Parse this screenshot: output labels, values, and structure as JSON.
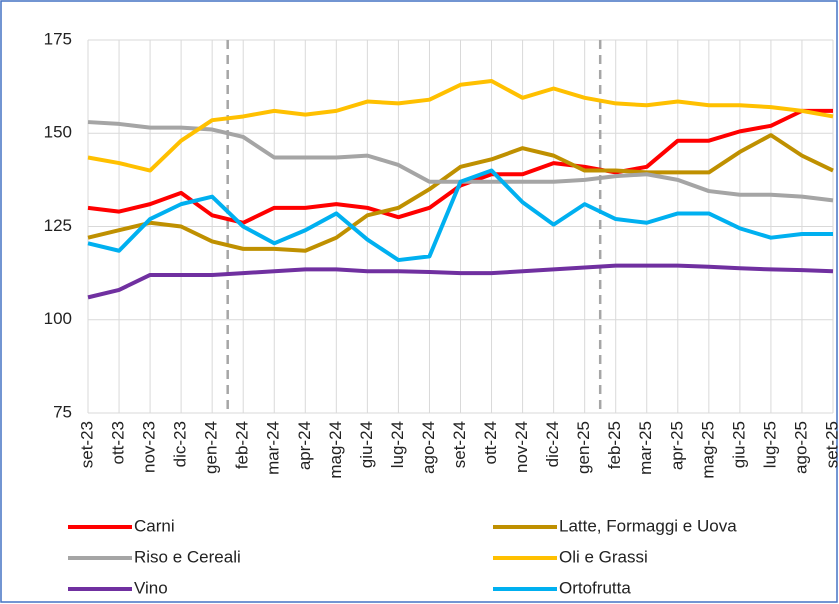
{
  "chart_data": {
    "type": "line",
    "categories": [
      "set-23",
      "ott-23",
      "nov-23",
      "dic-23",
      "gen-24",
      "feb-24",
      "mar-24",
      "apr-24",
      "mag-24",
      "giu-24",
      "lug-24",
      "ago-24",
      "set-24",
      "ott-24",
      "nov-24",
      "dic-24",
      "gen-25",
      "feb-25",
      "mar-25",
      "apr-25",
      "mag-25",
      "giu-25",
      "lug-25",
      "ago-25",
      "set-25"
    ],
    "series": [
      {
        "name": "Carni",
        "color": "#ff0000",
        "values": [
          130,
          129,
          131,
          134,
          128,
          126,
          130,
          130,
          131,
          130,
          127.5,
          130,
          136,
          139,
          139,
          142,
          141,
          139.5,
          141,
          148,
          148,
          150.5,
          152,
          156,
          156
        ]
      },
      {
        "name": "Latte, Formaggi e Uova",
        "color": "#bf9000",
        "values": [
          122,
          124,
          126,
          125,
          121,
          119,
          119,
          118.5,
          122,
          128,
          130,
          135,
          141,
          143,
          146,
          144,
          140,
          140,
          139.5,
          139.5,
          139.5,
          145,
          149.5,
          144,
          140
        ]
      },
      {
        "name": "Riso e Cereali",
        "color": "#a5a5a5",
        "values": [
          153,
          152.5,
          151.5,
          151.5,
          151,
          149,
          143.5,
          143.5,
          143.5,
          144,
          141.5,
          137,
          137,
          137,
          137,
          137,
          137.5,
          138.5,
          139,
          137.5,
          134.5,
          133.5,
          133.5,
          133,
          132
        ]
      },
      {
        "name": "Oli e Grassi",
        "color": "#ffc000",
        "values": [
          143.5,
          142,
          140,
          148,
          153.5,
          154.5,
          156,
          155,
          156,
          158.5,
          158,
          159,
          163,
          164,
          159.5,
          162,
          159.5,
          158,
          157.5,
          158.5,
          157.5,
          157.5,
          157,
          156,
          154.5
        ]
      },
      {
        "name": "Vino",
        "color": "#7030a0",
        "values": [
          106,
          108,
          112,
          112,
          112,
          112.5,
          113,
          113.5,
          113.5,
          113,
          113,
          112.8,
          112.5,
          112.5,
          113,
          113.5,
          114,
          114.5,
          114.5,
          114.5,
          114.2,
          113.8,
          113.5,
          113.3,
          113
        ]
      },
      {
        "name": "Ortofrutta",
        "color": "#00b0f0",
        "values": [
          120.5,
          118.5,
          127,
          131,
          133,
          125,
          120.5,
          124,
          128.5,
          121.5,
          116,
          117,
          137,
          140,
          131.5,
          125.5,
          131,
          127,
          126,
          128.5,
          128.5,
          124.5,
          122,
          123,
          123
        ]
      }
    ],
    "ylim": [
      75,
      175
    ],
    "yticks": [
      75,
      100,
      125,
      150,
      175
    ],
    "grid": true
  }
}
